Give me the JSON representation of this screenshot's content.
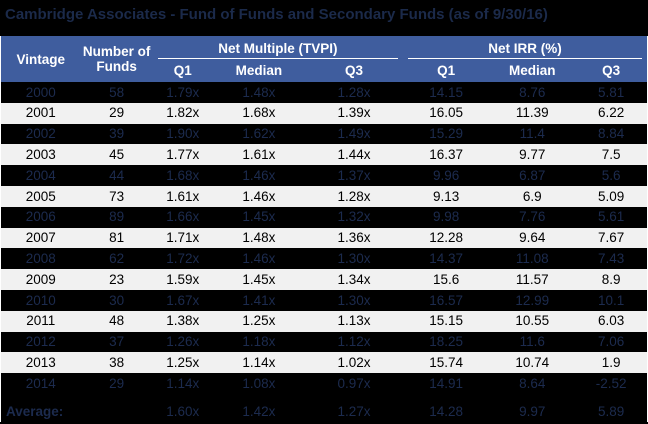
{
  "chart_data": {
    "type": "table",
    "title": "Cambridge Associates - Fund of Funds and Secondary Funds (as of 9/30/16)",
    "column_groups": [
      {
        "label": "Net Multiple (TVPI)",
        "sub_columns": [
          "Q1",
          "Median",
          "Q3"
        ]
      },
      {
        "label": "Net IRR (%)",
        "sub_columns": [
          "Q1",
          "Median",
          "Q3"
        ]
      }
    ],
    "columns": [
      "Vintage",
      "Number of Funds",
      "TVPI Q1",
      "TVPI Median",
      "TVPI Q3",
      "IRR Q1",
      "IRR Median",
      "IRR Q3"
    ],
    "rows": [
      [
        "2000",
        "58",
        "1.79x",
        "1.48x",
        "1.28x",
        "14.15",
        "8.76",
        "5.81"
      ],
      [
        "2001",
        "29",
        "1.82x",
        "1.68x",
        "1.39x",
        "16.05",
        "11.39",
        "6.22"
      ],
      [
        "2002",
        "39",
        "1.90x",
        "1.62x",
        "1.49x",
        "15.29",
        "11.4",
        "8.84"
      ],
      [
        "2003",
        "45",
        "1.77x",
        "1.61x",
        "1.44x",
        "16.37",
        "9.77",
        "7.5"
      ],
      [
        "2004",
        "44",
        "1.68x",
        "1.46x",
        "1.37x",
        "9.96",
        "6.87",
        "5.6"
      ],
      [
        "2005",
        "73",
        "1.61x",
        "1.46x",
        "1.28x",
        "9.13",
        "6.9",
        "5.09"
      ],
      [
        "2006",
        "89",
        "1.66x",
        "1.45x",
        "1.32x",
        "9.98",
        "7.76",
        "5.61"
      ],
      [
        "2007",
        "81",
        "1.71x",
        "1.48x",
        "1.36x",
        "12.28",
        "9.64",
        "7.67"
      ],
      [
        "2008",
        "62",
        "1.72x",
        "1.46x",
        "1.30x",
        "14.37",
        "11.08",
        "7.43"
      ],
      [
        "2009",
        "23",
        "1.59x",
        "1.45x",
        "1.34x",
        "15.6",
        "11.57",
        "8.9"
      ],
      [
        "2010",
        "30",
        "1.67x",
        "1.41x",
        "1.30x",
        "16.57",
        "12.99",
        "10.1"
      ],
      [
        "2011",
        "48",
        "1.38x",
        "1.25x",
        "1.13x",
        "15.15",
        "10.55",
        "6.03"
      ],
      [
        "2012",
        "37",
        "1.26x",
        "1.18x",
        "1.12x",
        "18.25",
        "11.6",
        "7.06"
      ],
      [
        "2013",
        "38",
        "1.25x",
        "1.14x",
        "1.02x",
        "15.74",
        "10.74",
        "1.9"
      ],
      [
        "2014",
        "29",
        "1.14x",
        "1.08x",
        "0.97x",
        "14.91",
        "8.64",
        "-2.52"
      ]
    ],
    "footer_row": [
      "Average:",
      "",
      "1.60x",
      "1.42x",
      "1.27x",
      "14.28",
      "9.97",
      "5.89"
    ],
    "layout_hints": {
      "striping": "rows alternate: even vintages dark (black background, faint navy text), odd vintages light; footer row dark style",
      "grid": "off",
      "group_underline": "white rule under each column group header spanning its three sub-columns"
    }
  },
  "header": {
    "vintage": "Vintage",
    "funds": "Number of Funds",
    "tvpi_group": "Net Multiple (TVPI)",
    "irr_group": "Net IRR (%)",
    "tvpi_subs": [
      "Q1",
      "Median",
      "Q3"
    ],
    "irr_subs": [
      "Q1",
      "Median",
      "Q3"
    ]
  },
  "colors": {
    "page_background": "#000000",
    "header_background": "#3F5D9E",
    "header_text": "#FFFFFF",
    "light_row_background": "#F1F1F1",
    "light_row_text": "#000000",
    "dark_row_text": "#1C2B4E",
    "title_text": "#1B2A4A"
  }
}
